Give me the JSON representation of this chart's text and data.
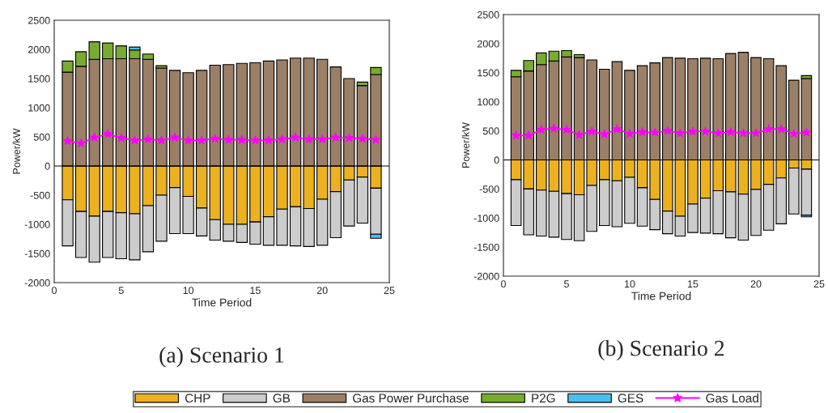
{
  "chart_data": [
    {
      "type": "bar",
      "title": "(a) Scenario 1",
      "xlabel": "Time Period",
      "ylabel": "Power/kW",
      "stacked": true,
      "legend": "bottom",
      "grid": false,
      "x": [
        1,
        2,
        3,
        4,
        5,
        6,
        7,
        8,
        9,
        10,
        11,
        12,
        13,
        14,
        15,
        16,
        17,
        18,
        19,
        20,
        21,
        22,
        23,
        24
      ],
      "xlim": [
        0,
        25
      ],
      "xticks": [
        0,
        5,
        10,
        15,
        20,
        25
      ],
      "ylim": [
        -2000,
        2500
      ],
      "yticks": [
        -2000,
        -1500,
        -1000,
        -500,
        0,
        500,
        1000,
        1500,
        2000,
        2500
      ],
      "ref_lines": [
        {
          "axis": "y",
          "value": 0,
          "color": "#000000"
        }
      ],
      "series": [
        {
          "name": "CHP",
          "color": "#edb120",
          "values": [
            -580,
            -780,
            -860,
            -780,
            -800,
            -820,
            -680,
            -500,
            -370,
            -520,
            -720,
            -920,
            -1000,
            -1000,
            -960,
            -870,
            -740,
            -700,
            -730,
            -570,
            -440,
            -240,
            -190,
            -380
          ]
        },
        {
          "name": "GB",
          "color": "#cccccc",
          "values": [
            -790,
            -790,
            -790,
            -790,
            -790,
            -790,
            -790,
            -790,
            -790,
            -640,
            -480,
            -350,
            -290,
            -310,
            -380,
            -490,
            -620,
            -670,
            -650,
            -790,
            -790,
            -790,
            -790,
            -790
          ]
        },
        {
          "name": "Gas Power Purchase",
          "color": "#9b7f67",
          "values": [
            1610,
            1710,
            1830,
            1840,
            1840,
            1840,
            1830,
            1680,
            1640,
            1600,
            1640,
            1730,
            1740,
            1760,
            1770,
            1800,
            1820,
            1850,
            1850,
            1830,
            1700,
            1500,
            1380,
            1570
          ]
        },
        {
          "name": "P2G",
          "color": "#77ac30",
          "values": [
            190,
            250,
            300,
            270,
            220,
            150,
            90,
            40,
            null,
            null,
            null,
            null,
            null,
            null,
            null,
            null,
            null,
            null,
            null,
            null,
            null,
            null,
            60,
            120
          ]
        },
        {
          "name": "GES",
          "color": "#4dbeee",
          "values": [
            null,
            null,
            null,
            null,
            null,
            50,
            null,
            null,
            null,
            null,
            null,
            null,
            null,
            null,
            null,
            null,
            null,
            null,
            null,
            null,
            null,
            null,
            null,
            -70
          ]
        },
        {
          "name": "Gas Load",
          "type": "line",
          "color": "#ff00ff",
          "marker": "star",
          "line_style": "solid",
          "values": [
            430,
            390,
            490,
            550,
            480,
            440,
            460,
            440,
            490,
            440,
            440,
            470,
            450,
            450,
            440,
            440,
            460,
            490,
            460,
            460,
            490,
            480,
            470,
            450
          ]
        }
      ]
    },
    {
      "type": "bar",
      "title": "(b) Scenario 2",
      "xlabel": "Time Period",
      "ylabel": "Power/kW",
      "stacked": true,
      "grid": false,
      "x": [
        1,
        2,
        3,
        4,
        5,
        6,
        7,
        8,
        9,
        10,
        11,
        12,
        13,
        14,
        15,
        16,
        17,
        18,
        19,
        20,
        21,
        22,
        23,
        24
      ],
      "xlim": [
        0,
        25
      ],
      "xticks": [
        0,
        5,
        10,
        15,
        20,
        25
      ],
      "ylim": [
        -2000,
        2500
      ],
      "yticks": [
        -2000,
        -1500,
        -1000,
        -500,
        0,
        500,
        1000,
        1500,
        2000,
        2500
      ],
      "ref_lines": [
        {
          "axis": "y",
          "value": 0,
          "color": "#000000"
        }
      ],
      "series": [
        {
          "color": "#edb120",
          "values": [
            -340,
            -500,
            -520,
            -540,
            -580,
            -600,
            -440,
            -340,
            -360,
            -300,
            -480,
            -680,
            -880,
            -970,
            -760,
            -660,
            -530,
            -550,
            -590,
            -510,
            -420,
            -310,
            -140,
            -160
          ]
        },
        {
          "color": "#cccccc",
          "values": [
            -790,
            -790,
            -790,
            -790,
            -790,
            -790,
            -790,
            -790,
            -790,
            -790,
            -660,
            -520,
            -390,
            -340,
            -490,
            -600,
            -740,
            -790,
            -790,
            -790,
            -790,
            -790,
            -790,
            -790
          ]
        },
        {
          "color": "#9b7f67",
          "values": [
            1430,
            1530,
            1640,
            1700,
            1770,
            1760,
            1720,
            1560,
            1690,
            1540,
            1620,
            1670,
            1760,
            1750,
            1740,
            1750,
            1740,
            1830,
            1850,
            1760,
            1740,
            1620,
            1370,
            1400
          ]
        },
        {
          "color": "#77ac30",
          "values": [
            110,
            180,
            200,
            170,
            110,
            50,
            null,
            null,
            null,
            null,
            null,
            null,
            null,
            null,
            null,
            null,
            null,
            null,
            null,
            null,
            null,
            null,
            null,
            50
          ]
        },
        {
          "color": "#4dbeee",
          "values": [
            null,
            null,
            null,
            null,
            null,
            null,
            null,
            null,
            null,
            null,
            null,
            null,
            null,
            null,
            null,
            null,
            null,
            null,
            null,
            null,
            null,
            null,
            null,
            -30
          ]
        },
        {
          "type": "line",
          "color": "#ff00ff",
          "marker": "star",
          "line_style": "solid",
          "values": [
            420,
            420,
            520,
            540,
            520,
            430,
            490,
            440,
            530,
            450,
            480,
            470,
            500,
            460,
            490,
            490,
            460,
            480,
            460,
            460,
            530,
            530,
            450,
            470
          ]
        }
      ]
    }
  ]
}
